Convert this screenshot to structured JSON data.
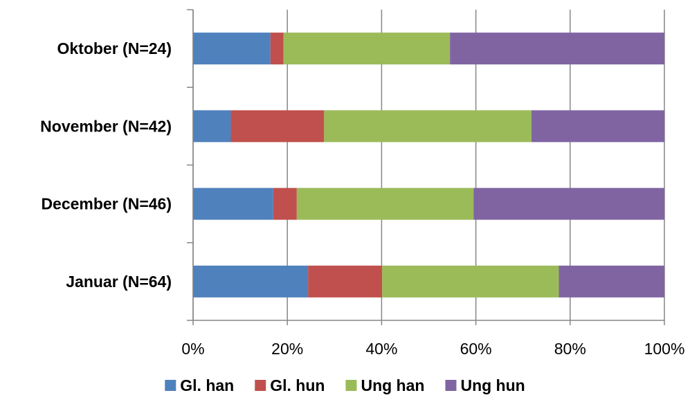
{
  "chart_data": {
    "type": "bar",
    "orientation": "horizontal",
    "stacked": "percent",
    "title": "",
    "xlabel": "",
    "ylabel": "",
    "categories": [
      "Januar (N=64)",
      "December (N=46)",
      "November (N=42)",
      "Oktober (N=24)"
    ],
    "series": [
      {
        "name": "Gl. han",
        "color": "#4f81bd",
        "values": [
          24.4,
          17.0,
          8.0,
          16.4
        ]
      },
      {
        "name": "Gl. hun",
        "color": "#c0504d",
        "values": [
          15.7,
          5.0,
          19.8,
          2.8
        ]
      },
      {
        "name": "Ung han",
        "color": "#9bbb59",
        "values": [
          37.5,
          37.5,
          44.0,
          35.3
        ]
      },
      {
        "name": "Ung hun",
        "color": "#8064a2",
        "values": [
          22.4,
          40.5,
          28.2,
          45.5
        ]
      }
    ],
    "xlim": [
      0,
      100
    ],
    "xticks": [
      "0%",
      "20%",
      "40%",
      "60%",
      "80%",
      "100%"
    ],
    "grid": true,
    "legend": "bottom"
  }
}
